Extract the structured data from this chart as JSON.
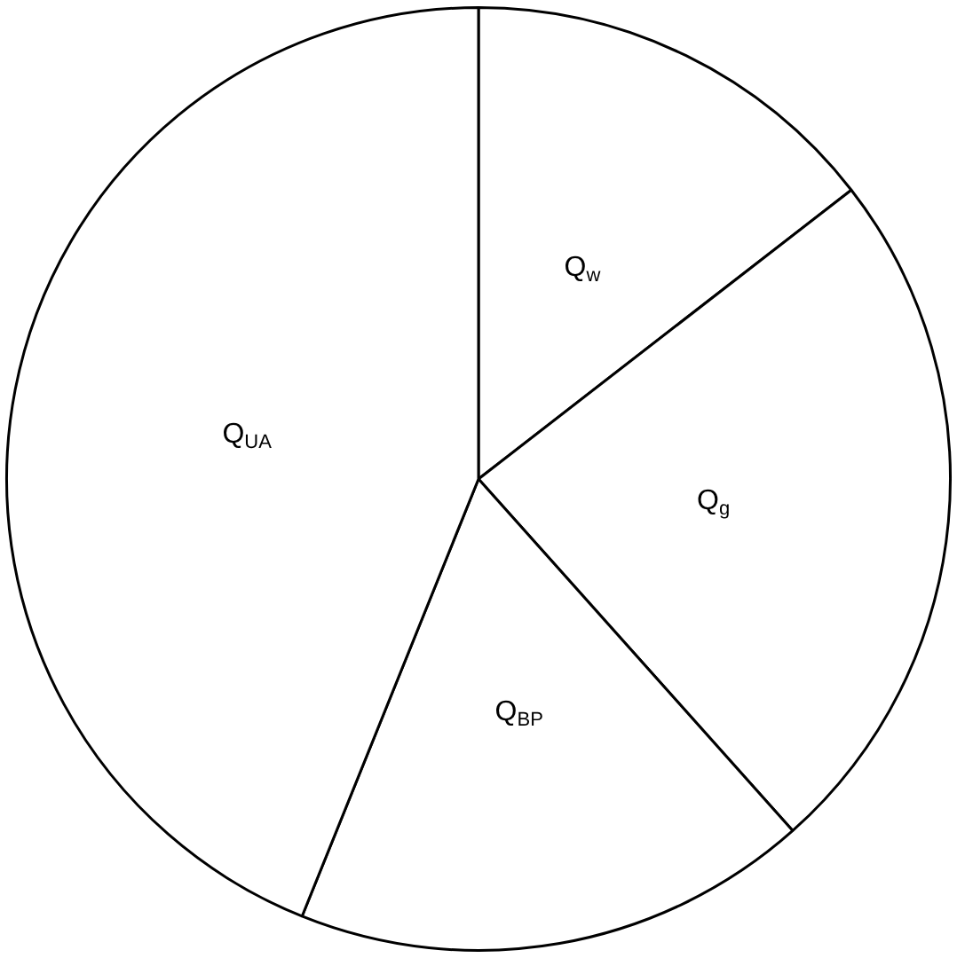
{
  "chart_data": {
    "type": "pie",
    "categories": [
      "Q$_{w}$",
      "Q$_{g}$",
      "Q$_{BP}$",
      "Q$_{UA}$"
    ],
    "values": [
      14.5,
      23.9,
      17.7,
      43.9
    ],
    "colors": [
      "#ffffff",
      "#ffffff",
      "#ffffff",
      "#ffffff"
    ],
    "legend": false
  }
}
